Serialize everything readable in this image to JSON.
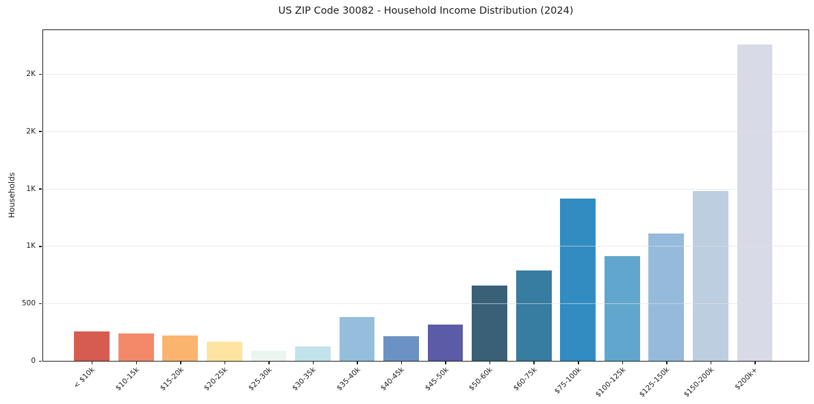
{
  "chart_data": {
    "type": "bar",
    "title": "US ZIP Code 30082 - Household Income Distribution (2024)",
    "xlabel": "",
    "ylabel": "Households",
    "categories": [
      "< $10k",
      "$10-15k",
      "$15-20k",
      "$20-25k",
      "$25-30k",
      "$30-35k",
      "$35-40k",
      "$40-45k",
      "$45-50k",
      "$50-60k",
      "$60-75k",
      "$75-100k",
      "$100-125k",
      "$125-150k",
      "$150-200k",
      "$200k+"
    ],
    "values": [
      255,
      234,
      216,
      164,
      85,
      120,
      378,
      211,
      312,
      656,
      782,
      1410,
      911,
      1104,
      1474,
      2750
    ],
    "bar_colors": [
      "#d65c52",
      "#f4896a",
      "#fbb46d",
      "#fde4a0",
      "#ebf5f0",
      "#c2e2ec",
      "#94bedb",
      "#6c92c3",
      "#5c5ba8",
      "#3a6078",
      "#377ca1",
      "#318cc2",
      "#61a7cd",
      "#95badc",
      "#bdcee1",
      "#d8dae7"
    ],
    "ylim": [
      0,
      2890
    ],
    "yticks": [
      {
        "value": 0,
        "label": "0"
      },
      {
        "value": 500,
        "label": "500"
      },
      {
        "value": 1000,
        "label": "1K"
      },
      {
        "value": 1500,
        "label": "1K"
      },
      {
        "value": 2000,
        "label": "2K"
      },
      {
        "value": 2500,
        "label": "2K"
      }
    ],
    "grid": "horizontal",
    "legend": "none",
    "colors": {
      "background": "#ffffff",
      "axis": "#1a1a1a",
      "gridline": "#e6e6e6",
      "text": "#1a1a1a"
    }
  }
}
